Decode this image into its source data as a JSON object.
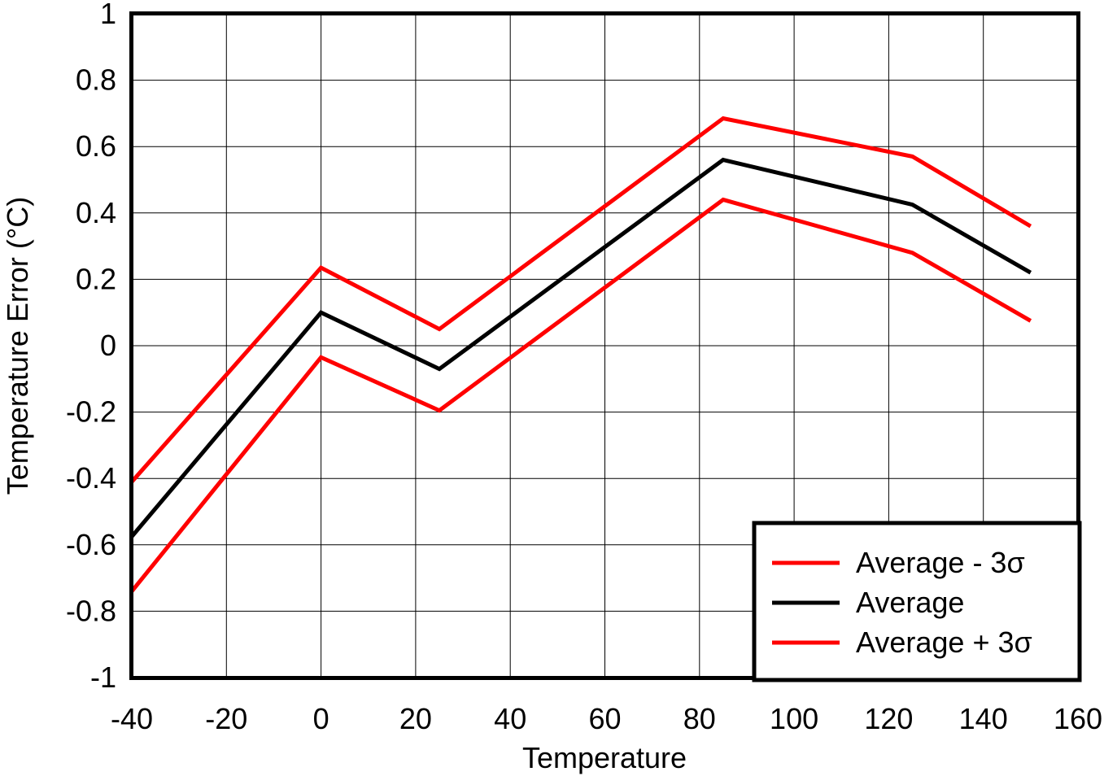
{
  "chart_data": {
    "type": "line",
    "xlabel": "Temperature",
    "ylabel": "Temperature Error (°C)",
    "xlim": [
      -40,
      160
    ],
    "ylim": [
      -1,
      1
    ],
    "x_ticks": [
      "-40",
      "-20",
      "0",
      "20",
      "40",
      "60",
      "80",
      "100",
      "120",
      "140",
      "160"
    ],
    "y_ticks": [
      "1",
      "0.8",
      "0.6",
      "0.4",
      "0.2",
      "0",
      "-0.2",
      "-0.4",
      "-0.6",
      "-0.8",
      "-1"
    ],
    "x_tick_values": [
      -40,
      -20,
      0,
      20,
      40,
      60,
      80,
      100,
      120,
      140,
      160
    ],
    "y_tick_values": [
      1,
      0.8,
      0.6,
      0.4,
      0.2,
      0,
      -0.2,
      -0.4,
      -0.6,
      -0.8,
      -1
    ],
    "grid": true,
    "legend_position": "bottom-right",
    "x": [
      -40,
      0,
      25,
      85,
      125,
      150
    ],
    "series": [
      {
        "name": "Average - 3σ",
        "color": "#ff0000",
        "values": [
          -0.41,
          0.235,
          0.05,
          0.685,
          0.57,
          0.36
        ]
      },
      {
        "name": "Average",
        "color": "#000000",
        "values": [
          -0.575,
          0.1,
          -0.07,
          0.56,
          0.425,
          0.22
        ]
      },
      {
        "name": "Average + 3σ",
        "color": "#ff0000",
        "values": [
          -0.74,
          -0.035,
          -0.195,
          0.44,
          0.28,
          0.075
        ]
      }
    ]
  }
}
